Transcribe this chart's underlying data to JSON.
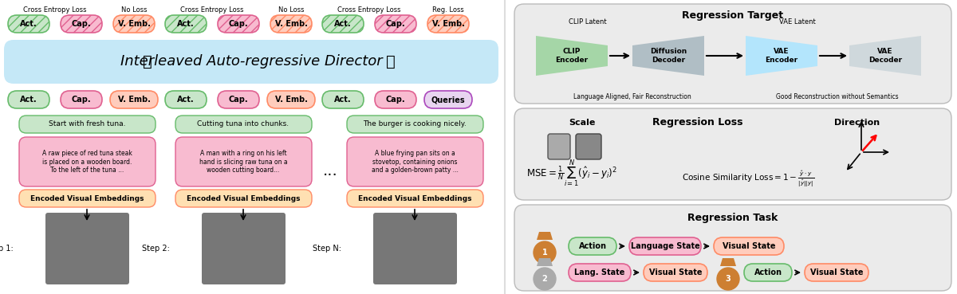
{
  "bg_color": "#ffffff",
  "director_bar_bg": "#c5e8f7",
  "act_color": "#c8e6c9",
  "act_border": "#66bb6a",
  "cap_color": "#f8bbd0",
  "cap_border": "#e06090",
  "vemb_color": "#ffccbc",
  "vemb_border": "#ff8a65",
  "queries_color": "#e8d5f0",
  "queries_border": "#ab47bc",
  "green_box": "#c8e6c9",
  "pink_box": "#f8bbd0",
  "orange_box": "#ffccbc",
  "encoded_box": "#ffe0b2",
  "clip_color": "#a5d6a7",
  "diff_color": "#b0bec5",
  "vae_enc_color": "#b3e5fc",
  "vae_dec_color": "#cfd8dc",
  "panel_bg": "#ebebeb",
  "title": "Interleaved Auto-regressive Director",
  "step1_caption": "Start with fresh tuna.",
  "step1_desc": "A raw piece of red tuna steak\nis placed on a wooden board.\nTo the left of the tuna ...",
  "step2_caption": "Cutting tuna into chunks.",
  "step2_desc": "A man with a ring on his left\nhand is slicing raw tuna on a\nwooden cutting board...",
  "stepN_caption": "The burger is cooking nicely.",
  "stepN_desc": "A blue frying pan sits on a\nstovetop, containing onions\nand a golden-brown patty ...",
  "encoded_label": "Encoded Visual Embeddings",
  "reg_target_title": "Regression Target",
  "clip_latent": "CLIP Latent",
  "vae_latent": "VAE Latent",
  "lang_aligned": "Language Aligned, Fair Reconstruction",
  "good_recon": "Good Reconstruction without Semantics",
  "scale_label": "Scale",
  "reg_loss_title": "Regression Loss",
  "direction_label": "Direction",
  "reg_task_title": "Regression Task",
  "mse_formula": "$\\mathrm{MSE} = \\frac{1}{N}\\sum_{i=1}^{N}(\\hat{y}_i - y_i)^2$",
  "cosine_formula": "$\\mathrm{Cosine\\ Similarity\\ Loss} = 1 - \\frac{\\hat{y} \\cdot y}{|\\hat{y}||y|}$"
}
